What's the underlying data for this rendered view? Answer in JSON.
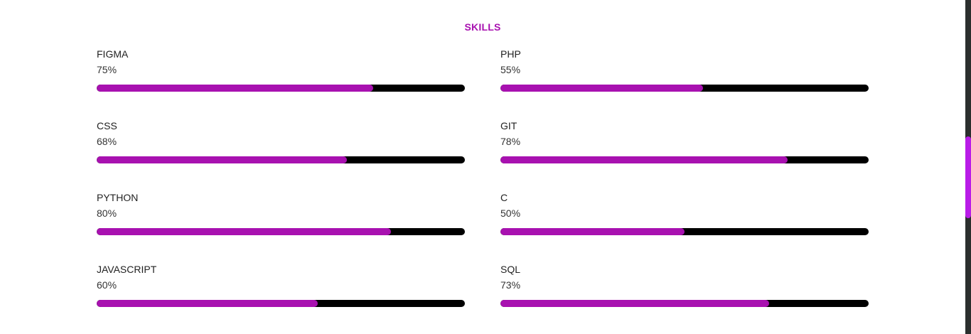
{
  "section": {
    "title": "SKILLS"
  },
  "colors": {
    "accent": "#a811b0",
    "track": "#000000",
    "scroll_thumb": "#b91ce8",
    "scroll_track": "#2b2f2e"
  },
  "skills": [
    {
      "name": "FIGMA",
      "percent_label": "75%",
      "value": 75
    },
    {
      "name": "PHP",
      "percent_label": "55%",
      "value": 55
    },
    {
      "name": "CSS",
      "percent_label": "68%",
      "value": 68
    },
    {
      "name": "GIT",
      "percent_label": "78%",
      "value": 78
    },
    {
      "name": "PYTHON",
      "percent_label": "80%",
      "value": 80
    },
    {
      "name": "C",
      "percent_label": "50%",
      "value": 50
    },
    {
      "name": "JAVASCRIPT",
      "percent_label": "60%",
      "value": 60
    },
    {
      "name": "SQL",
      "percent_label": "73%",
      "value": 73
    }
  ]
}
